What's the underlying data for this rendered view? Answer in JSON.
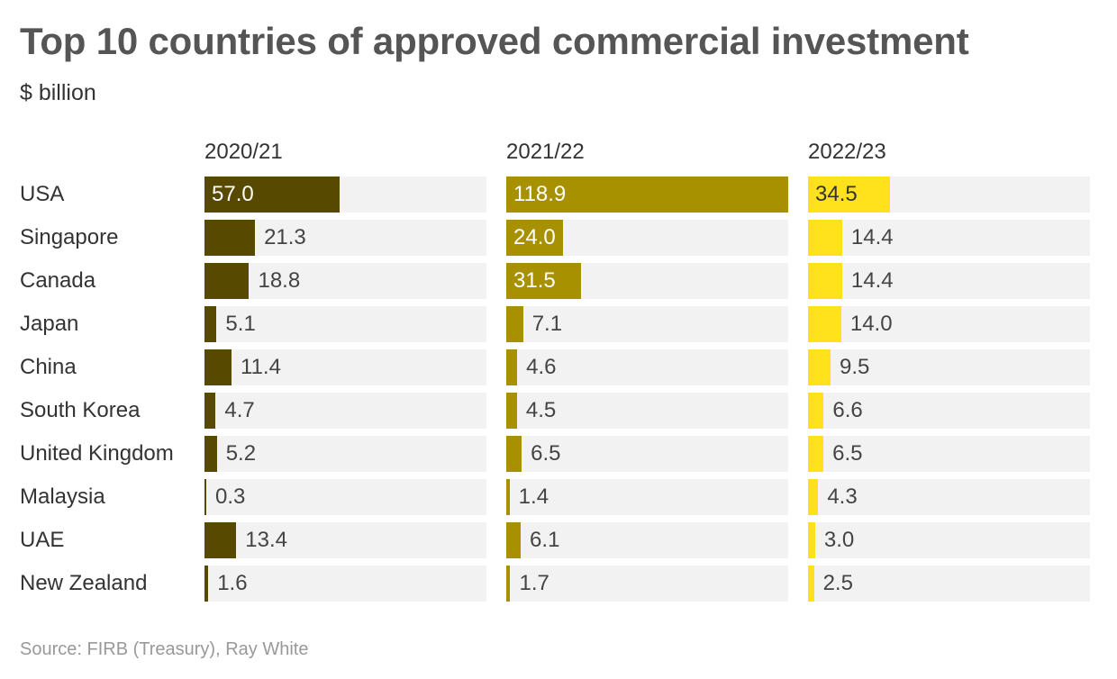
{
  "header": {
    "title": "Top 10 countries of approved commercial investment",
    "subtitle": "$ billion"
  },
  "footer": {
    "source": "Source: FIRB (Treasury), Ray White"
  },
  "colors": {
    "track": "#f2f2f2",
    "text": "#333333",
    "text_light": "#555555",
    "source": "#999999",
    "series": [
      "#574a00",
      "#a89100",
      "#ffe21c"
    ]
  },
  "chart_data": {
    "type": "bar",
    "orientation": "horizontal",
    "layout": "small-multiples",
    "title": "Top 10 countries of approved commercial investment",
    "subtitle": "$ billion",
    "categories": [
      "USA",
      "Singapore",
      "Canada",
      "Japan",
      "China",
      "South Korea",
      "United Kingdom",
      "Malaysia",
      "UAE",
      "New Zealand"
    ],
    "series": [
      {
        "name": "2020/21",
        "values": [
          57.0,
          21.3,
          18.8,
          5.1,
          11.4,
          4.7,
          5.2,
          0.3,
          13.4,
          1.6
        ],
        "labels": [
          "57.0",
          "21.3",
          "18.8",
          "5.1",
          "11.4",
          "4.7",
          "5.2",
          "0.3",
          "13.4",
          "1.6"
        ]
      },
      {
        "name": "2021/22",
        "values": [
          118.9,
          24.0,
          31.5,
          7.1,
          4.6,
          4.5,
          6.5,
          1.4,
          6.1,
          1.7
        ],
        "labels": [
          "118.9",
          "24.0",
          "31.5",
          "7.1",
          "4.6",
          "4.5",
          "6.5",
          "1.4",
          "6.1",
          "1.7"
        ]
      },
      {
        "name": "2022/23",
        "values": [
          34.5,
          14.4,
          14.4,
          14.0,
          9.5,
          6.6,
          6.5,
          4.3,
          3.0,
          2.5
        ],
        "labels": [
          "34.5",
          "14.4",
          "14.4",
          "14.0",
          "9.5",
          "6.6",
          "6.5",
          "4.3",
          "3.0",
          "2.5"
        ]
      }
    ],
    "xlim": [
      0,
      118.9
    ],
    "grid": false,
    "legend": "none",
    "source": "Source: FIRB (Treasury), Ray White"
  }
}
